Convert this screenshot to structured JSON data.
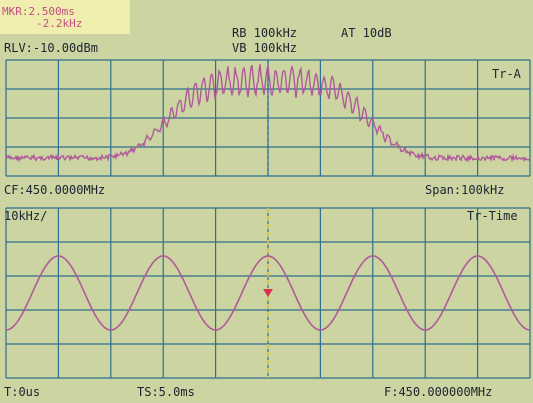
{
  "header": {
    "marker_delta_time": "MKR:2.500ms",
    "marker_delta_freq": "-2.2kHz",
    "ref_level": "RLV:-10.00dBm",
    "rbw": "RB 100kHz",
    "attenuation": "AT 10dB",
    "vbw": "VB 100kHz"
  },
  "upper_panel": {
    "trace_label": "Tr-A",
    "center_freq": "CF:450.0000MHz",
    "span": "Span:100kHz"
  },
  "lower_panel": {
    "scale": "10kHz/",
    "trace_label": "Tr-Time",
    "trigger": "T:0us",
    "time_span": "TS:5.0ms",
    "frequency": "F:450.000000MHz"
  },
  "colors": {
    "screen_bg": "#ccd4a2",
    "grid": "#2f6f8f",
    "trace": "#b05a9a",
    "marker_box": "#f0eeae",
    "center_line_upper": "#2e6fa8",
    "center_line_lower": "#e3c43a",
    "marker_point": "#d6324a"
  }
}
